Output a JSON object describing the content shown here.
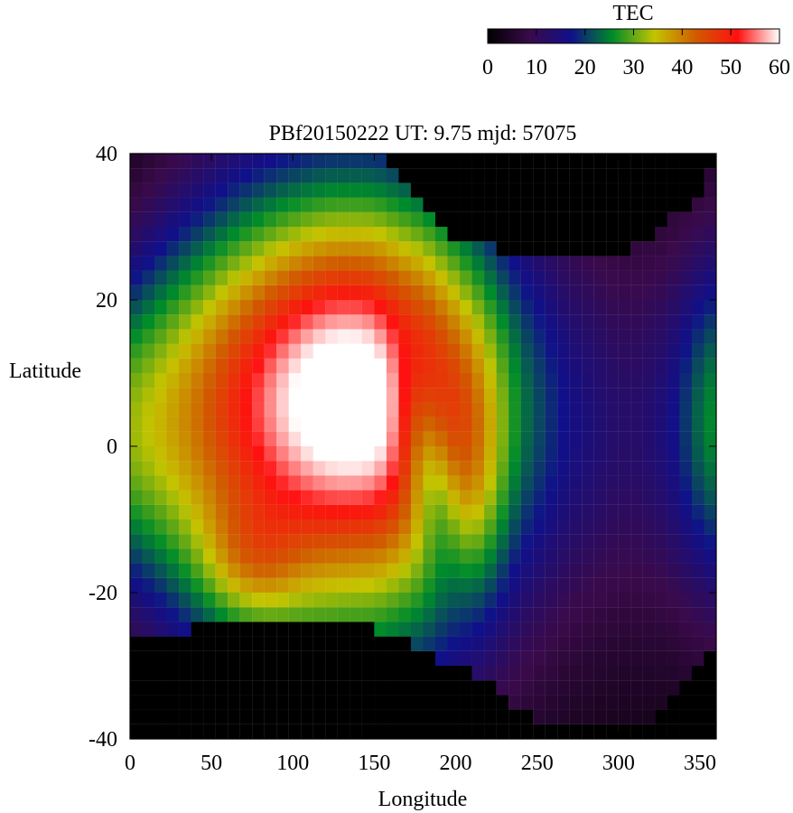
{
  "chart_data": {
    "type": "heatmap",
    "title": "PBf20150222  UT: 9.75  mjd: 57075",
    "xlabel": "Longitude",
    "ylabel": "Latitude",
    "xlim": [
      0,
      360
    ],
    "ylim": [
      -40,
      40
    ],
    "x_ticks": [
      0,
      50,
      100,
      150,
      200,
      250,
      300,
      350
    ],
    "y_ticks": [
      -40,
      -20,
      0,
      20,
      40
    ],
    "grid": false,
    "colorbar": {
      "label": "TEC",
      "min": 0,
      "max": 60,
      "ticks": [
        0,
        10,
        20,
        30,
        40,
        50,
        60
      ],
      "placement": "top-right",
      "colormap": [
        "#000000",
        "#3a0a4a",
        "#10108a",
        "#008c2a",
        "#c4c400",
        "#d05a00",
        "#ff1010",
        "#ffffff"
      ]
    },
    "field": {
      "crest_lon": [
        [
          0,
          28,
          17
        ],
        [
          30,
          30,
          21
        ],
        [
          60,
          32,
          24
        ],
        [
          90,
          33,
          26
        ],
        [
          120,
          34,
          27
        ],
        [
          150,
          34,
          27
        ],
        [
          180,
          31,
          26
        ],
        [
          210,
          24,
          25
        ],
        [
          240,
          16,
          24
        ],
        [
          270,
          12,
          22
        ],
        [
          300,
          10,
          21
        ],
        [
          330,
          11,
          20
        ],
        [
          360,
          15,
          20
        ]
      ],
      "dark_north": [
        [
          0,
          62
        ],
        [
          120,
          62
        ],
        [
          150,
          40
        ],
        [
          200,
          28
        ],
        [
          250,
          26
        ],
        [
          285,
          25
        ],
        [
          320,
          28
        ],
        [
          350,
          35
        ],
        [
          360,
          40
        ]
      ],
      "dark_south": [
        [
          0,
          -26
        ],
        [
          40,
          -25
        ],
        [
          60,
          -24
        ],
        [
          80,
          -23
        ],
        [
          110,
          -23
        ],
        [
          150,
          -25
        ],
        [
          200,
          -30
        ],
        [
          250,
          -37
        ],
        [
          280,
          -38
        ],
        [
          320,
          -37
        ],
        [
          340,
          -32
        ],
        [
          360,
          -27
        ]
      ]
    }
  }
}
